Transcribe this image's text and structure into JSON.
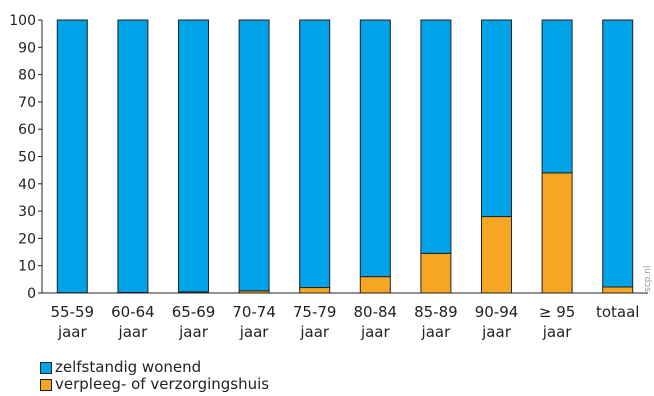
{
  "chart_data": {
    "type": "bar",
    "stacked": true,
    "categories": [
      [
        "55-59",
        "jaar"
      ],
      [
        "60-64",
        "jaar"
      ],
      [
        "65-69",
        "jaar"
      ],
      [
        "70-74",
        "jaar"
      ],
      [
        "75-79",
        "jaar"
      ],
      [
        "80-84",
        "jaar"
      ],
      [
        "85-89",
        "jaar"
      ],
      [
        "90-94",
        "jaar"
      ],
      [
        "≥ 95",
        "jaar"
      ],
      [
        "totaal"
      ]
    ],
    "series": [
      {
        "name": "verpleeg- of verzorgingshuis",
        "color": "#f5a623",
        "values": [
          0.1,
          0.2,
          0.4,
          0.8,
          2,
          6,
          14.5,
          28,
          44,
          2.2
        ]
      },
      {
        "name": "zelfstandig wonend",
        "color": "#00a3e8",
        "values": [
          99.9,
          99.8,
          99.6,
          99.2,
          98,
          94,
          85.5,
          72,
          56,
          97.8
        ]
      }
    ],
    "ylim": [
      0,
      100
    ],
    "yticks": [
      0,
      10,
      20,
      30,
      40,
      50,
      60,
      70,
      80,
      90,
      100
    ],
    "grid": false,
    "legend_position": "bottom-left",
    "watermark": "scp.nl"
  }
}
